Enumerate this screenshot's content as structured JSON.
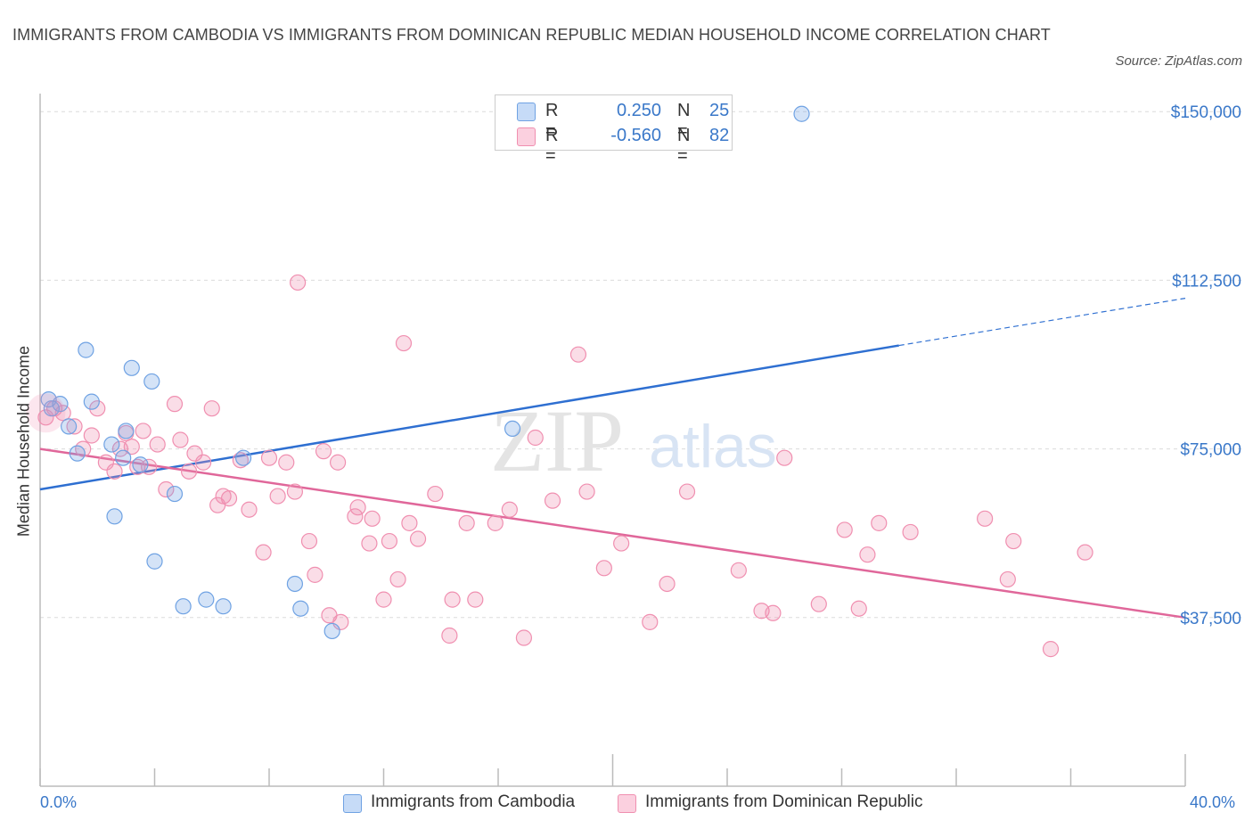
{
  "title": "IMMIGRANTS FROM CAMBODIA VS IMMIGRANTS FROM DOMINICAN REPUBLIC MEDIAN HOUSEHOLD INCOME CORRELATION CHART",
  "source": "Source: ZipAtlas.com",
  "legend": {
    "r_label": "R =",
    "n_label": "N =",
    "series": [
      {
        "r": "0.250",
        "n": "25"
      },
      {
        "r": "-0.560",
        "n": "82"
      }
    ]
  },
  "bottom_legend": [
    "Immigrants from Cambodia",
    "Immigrants from Dominican Republic"
  ],
  "x_axis": {
    "min_label": "0.0%",
    "max_label": "40.0%"
  },
  "chart_data": {
    "type": "scatter",
    "ylabel": "Median Household Income",
    "xlabel": "",
    "xlim": [
      0,
      40
    ],
    "ylim": [
      0,
      155000
    ],
    "ytick_labels": [
      "$150,000",
      "$112,500",
      "$75,000",
      "$37,500"
    ],
    "yticks": [
      150000,
      112500,
      75000,
      37500
    ],
    "watermark": "ZIPatlas",
    "colors": {
      "cambodia": "#6fa2e3",
      "dominican": "#f08fb0",
      "blue_line": "#2e6fd1",
      "pink_line": "#e0679a",
      "axis_label": "#3a78c9"
    },
    "series": [
      {
        "name": "Immigrants from Cambodia",
        "r": 0.25,
        "n": 25,
        "trend": {
          "x0": 0,
          "y0": 66000,
          "x1": 30,
          "y1": 98000,
          "x_ext": 40,
          "y_ext": 108500
        },
        "points": [
          {
            "x": 0.3,
            "y": 86000
          },
          {
            "x": 0.7,
            "y": 85000
          },
          {
            "x": 1.0,
            "y": 80000
          },
          {
            "x": 1.3,
            "y": 74000
          },
          {
            "x": 1.6,
            "y": 97000
          },
          {
            "x": 1.8,
            "y": 85500
          },
          {
            "x": 2.5,
            "y": 76000
          },
          {
            "x": 2.6,
            "y": 60000
          },
          {
            "x": 3.0,
            "y": 79000
          },
          {
            "x": 3.2,
            "y": 93000
          },
          {
            "x": 3.5,
            "y": 71500
          },
          {
            "x": 3.9,
            "y": 90000
          },
          {
            "x": 4.0,
            "y": 50000
          },
          {
            "x": 4.7,
            "y": 65000
          },
          {
            "x": 5.0,
            "y": 40000
          },
          {
            "x": 5.8,
            "y": 41500
          },
          {
            "x": 6.4,
            "y": 40000
          },
          {
            "x": 7.1,
            "y": 73000
          },
          {
            "x": 8.9,
            "y": 45000
          },
          {
            "x": 9.1,
            "y": 39500
          },
          {
            "x": 10.2,
            "y": 34500
          },
          {
            "x": 16.5,
            "y": 79500
          },
          {
            "x": 26.6,
            "y": 149500
          },
          {
            "x": 0.4,
            "y": 84000
          },
          {
            "x": 2.9,
            "y": 73000
          }
        ]
      },
      {
        "name": "Immigrants from Dominican Republic",
        "r": -0.56,
        "n": 82,
        "trend": {
          "x0": 0,
          "y0": 75000,
          "x1": 40,
          "y1": 37500
        },
        "points": [
          {
            "x": 0.2,
            "y": 82000
          },
          {
            "x": 0.5,
            "y": 84000
          },
          {
            "x": 1.2,
            "y": 80000
          },
          {
            "x": 1.5,
            "y": 75000
          },
          {
            "x": 2.0,
            "y": 84000
          },
          {
            "x": 1.8,
            "y": 78000
          },
          {
            "x": 2.3,
            "y": 72000
          },
          {
            "x": 2.6,
            "y": 70000
          },
          {
            "x": 2.8,
            "y": 75000
          },
          {
            "x": 3.0,
            "y": 78500
          },
          {
            "x": 3.2,
            "y": 75500
          },
          {
            "x": 3.6,
            "y": 79000
          },
          {
            "x": 3.8,
            "y": 71000
          },
          {
            "x": 4.1,
            "y": 76000
          },
          {
            "x": 4.4,
            "y": 66000
          },
          {
            "x": 4.7,
            "y": 85000
          },
          {
            "x": 4.9,
            "y": 77000
          },
          {
            "x": 5.2,
            "y": 70000
          },
          {
            "x": 5.4,
            "y": 74000
          },
          {
            "x": 5.7,
            "y": 72000
          },
          {
            "x": 6.0,
            "y": 84000
          },
          {
            "x": 6.2,
            "y": 62500
          },
          {
            "x": 6.4,
            "y": 64500
          },
          {
            "x": 6.6,
            "y": 64000
          },
          {
            "x": 7.0,
            "y": 72500
          },
          {
            "x": 7.3,
            "y": 61500
          },
          {
            "x": 7.8,
            "y": 52000
          },
          {
            "x": 8.0,
            "y": 73000
          },
          {
            "x": 8.3,
            "y": 64500
          },
          {
            "x": 8.6,
            "y": 72000
          },
          {
            "x": 8.9,
            "y": 65500
          },
          {
            "x": 9.0,
            "y": 112000
          },
          {
            "x": 9.4,
            "y": 54500
          },
          {
            "x": 9.6,
            "y": 47000
          },
          {
            "x": 9.9,
            "y": 74500
          },
          {
            "x": 10.1,
            "y": 38000
          },
          {
            "x": 10.4,
            "y": 72000
          },
          {
            "x": 10.5,
            "y": 36500
          },
          {
            "x": 11.0,
            "y": 60000
          },
          {
            "x": 11.1,
            "y": 62000
          },
          {
            "x": 11.5,
            "y": 54000
          },
          {
            "x": 11.6,
            "y": 59500
          },
          {
            "x": 12.0,
            "y": 41500
          },
          {
            "x": 12.2,
            "y": 54500
          },
          {
            "x": 12.5,
            "y": 46000
          },
          {
            "x": 12.7,
            "y": 98500
          },
          {
            "x": 12.9,
            "y": 58500
          },
          {
            "x": 13.2,
            "y": 55000
          },
          {
            "x": 13.8,
            "y": 65000
          },
          {
            "x": 14.3,
            "y": 33500
          },
          {
            "x": 14.4,
            "y": 41500
          },
          {
            "x": 14.9,
            "y": 58500
          },
          {
            "x": 15.2,
            "y": 41500
          },
          {
            "x": 15.9,
            "y": 58500
          },
          {
            "x": 16.4,
            "y": 61500
          },
          {
            "x": 16.9,
            "y": 33000
          },
          {
            "x": 17.3,
            "y": 77500
          },
          {
            "x": 17.9,
            "y": 63500
          },
          {
            "x": 18.8,
            "y": 96000
          },
          {
            "x": 19.1,
            "y": 65500
          },
          {
            "x": 19.7,
            "y": 48500
          },
          {
            "x": 20.3,
            "y": 54000
          },
          {
            "x": 21.3,
            "y": 36500
          },
          {
            "x": 21.9,
            "y": 45000
          },
          {
            "x": 22.6,
            "y": 65500
          },
          {
            "x": 24.4,
            "y": 48000
          },
          {
            "x": 25.2,
            "y": 39000
          },
          {
            "x": 25.6,
            "y": 38500
          },
          {
            "x": 26.0,
            "y": 73000
          },
          {
            "x": 27.2,
            "y": 40500
          },
          {
            "x": 28.1,
            "y": 57000
          },
          {
            "x": 28.6,
            "y": 39500
          },
          {
            "x": 28.9,
            "y": 51500
          },
          {
            "x": 29.3,
            "y": 58500
          },
          {
            "x": 30.4,
            "y": 56500
          },
          {
            "x": 33.0,
            "y": 59500
          },
          {
            "x": 33.8,
            "y": 46000
          },
          {
            "x": 34.0,
            "y": 54500
          },
          {
            "x": 35.3,
            "y": 30500
          },
          {
            "x": 36.5,
            "y": 52000
          },
          {
            "x": 0.8,
            "y": 83000
          },
          {
            "x": 3.4,
            "y": 71000
          }
        ]
      }
    ]
  }
}
